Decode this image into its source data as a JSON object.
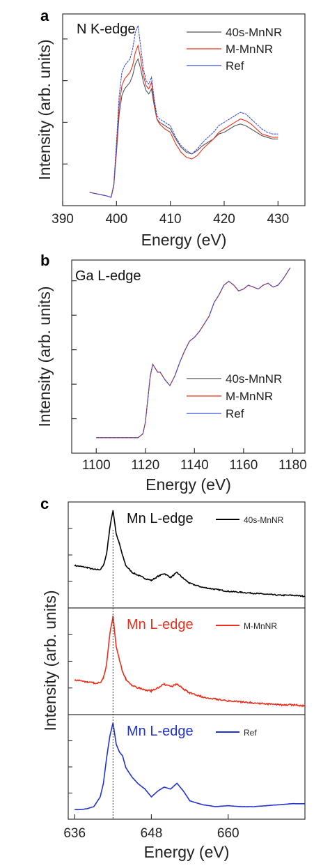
{
  "chart_data": [
    {
      "panel": "a",
      "type": "line",
      "annotation": "N K-edge",
      "xlabel": "Energy (eV)",
      "ylabel": "Intensity (arb. units)",
      "xlim": [
        390,
        435
      ],
      "ylim": [
        0,
        1.15
      ],
      "xticks": [
        390,
        400,
        410,
        420,
        430
      ],
      "legend_position": "top-right",
      "series": [
        {
          "name": "40s-MnNR",
          "color": "#555555",
          "x": [
            395,
            398,
            399,
            399.5,
            400,
            400.5,
            401,
            401.5,
            402,
            402.5,
            403,
            403.5,
            404,
            404.5,
            405,
            405.5,
            406,
            406.5,
            407,
            407.5,
            408,
            409,
            410,
            411,
            412,
            413,
            414,
            415,
            416,
            417,
            418,
            419,
            420,
            421,
            422,
            423,
            424,
            425,
            426,
            427,
            428,
            429,
            430
          ],
          "y": [
            0.08,
            0.06,
            0.05,
            0.12,
            0.32,
            0.55,
            0.66,
            0.7,
            0.72,
            0.74,
            0.78,
            0.85,
            0.88,
            0.82,
            0.74,
            0.69,
            0.67,
            0.7,
            0.6,
            0.52,
            0.5,
            0.48,
            0.46,
            0.4,
            0.35,
            0.32,
            0.31,
            0.33,
            0.36,
            0.38,
            0.4,
            0.43,
            0.44,
            0.46,
            0.48,
            0.49,
            0.48,
            0.46,
            0.44,
            0.42,
            0.41,
            0.4,
            0.4
          ]
        },
        {
          "name": "M-MnNR",
          "color": "#e8301c",
          "x": [
            395,
            398,
            399,
            399.5,
            400,
            400.5,
            401,
            401.5,
            402,
            402.5,
            403,
            403.5,
            404,
            404.5,
            405,
            405.5,
            406,
            406.5,
            407,
            407.5,
            408,
            409,
            410,
            411,
            412,
            413,
            414,
            415,
            416,
            417,
            418,
            419,
            420,
            421,
            422,
            423,
            424,
            425,
            426,
            427,
            428,
            429,
            430
          ],
          "y": [
            0.08,
            0.06,
            0.05,
            0.12,
            0.35,
            0.6,
            0.72,
            0.76,
            0.78,
            0.8,
            0.84,
            0.92,
            0.96,
            0.88,
            0.78,
            0.72,
            0.7,
            0.74,
            0.62,
            0.52,
            0.49,
            0.46,
            0.44,
            0.37,
            0.32,
            0.29,
            0.28,
            0.3,
            0.34,
            0.37,
            0.4,
            0.44,
            0.46,
            0.48,
            0.5,
            0.52,
            0.51,
            0.49,
            0.46,
            0.43,
            0.42,
            0.41,
            0.41
          ]
        },
        {
          "name": "Ref",
          "color": "#3a4fd8",
          "x": [
            395,
            398,
            399,
            399.5,
            400,
            400.5,
            401,
            401.5,
            402,
            402.5,
            403,
            403.5,
            404,
            404.5,
            405,
            405.5,
            406,
            406.5,
            407,
            407.5,
            408,
            409,
            410,
            411,
            412,
            413,
            414,
            415,
            416,
            417,
            418,
            419,
            420,
            421,
            422,
            423,
            424,
            425,
            426,
            427,
            428,
            429,
            430
          ],
          "y": [
            0.08,
            0.06,
            0.05,
            0.13,
            0.38,
            0.66,
            0.8,
            0.84,
            0.86,
            0.88,
            0.94,
            1.04,
            1.08,
            0.95,
            0.82,
            0.75,
            0.73,
            0.77,
            0.64,
            0.54,
            0.52,
            0.5,
            0.48,
            0.41,
            0.36,
            0.33,
            0.31,
            0.34,
            0.38,
            0.41,
            0.44,
            0.48,
            0.5,
            0.52,
            0.54,
            0.56,
            0.55,
            0.52,
            0.49,
            0.46,
            0.44,
            0.43,
            0.43
          ]
        }
      ]
    },
    {
      "panel": "b",
      "type": "line",
      "annotation": "Ga L-edge",
      "xlabel": "Energy (eV)",
      "ylabel": "Intensity (arb. units)",
      "xlim": [
        1090,
        1185
      ],
      "ylim": [
        0,
        1.0
      ],
      "xticks": [
        1100,
        1120,
        1140,
        1160,
        1180
      ],
      "legend_position": "bottom-right",
      "series": [
        {
          "name": "40s-MnNR",
          "color": "#555555",
          "x": [
            1100,
            1110,
            1117,
            1119,
            1120,
            1121,
            1122,
            1123,
            1124,
            1125,
            1126,
            1128,
            1130,
            1132,
            1134,
            1136,
            1138,
            1140,
            1142,
            1144,
            1146,
            1148,
            1150,
            1152,
            1154,
            1156,
            1158,
            1160,
            1162,
            1164,
            1166,
            1168,
            1170,
            1172,
            1174,
            1176,
            1178,
            1179
          ],
          "y": [
            0.08,
            0.08,
            0.08,
            0.1,
            0.16,
            0.28,
            0.4,
            0.46,
            0.44,
            0.42,
            0.42,
            0.38,
            0.35,
            0.4,
            0.47,
            0.53,
            0.58,
            0.6,
            0.63,
            0.67,
            0.71,
            0.78,
            0.82,
            0.87,
            0.89,
            0.87,
            0.84,
            0.85,
            0.87,
            0.86,
            0.85,
            0.87,
            0.88,
            0.86,
            0.87,
            0.9,
            0.94,
            0.96
          ]
        },
        {
          "name": "M-MnNR",
          "color": "#e8301c",
          "x": [
            1100,
            1110,
            1117,
            1119,
            1120,
            1121,
            1122,
            1123,
            1124,
            1125,
            1126,
            1128,
            1130,
            1132,
            1134,
            1136,
            1138,
            1140,
            1142,
            1144,
            1146,
            1148,
            1150,
            1152,
            1154,
            1156,
            1158,
            1160,
            1162,
            1164,
            1166,
            1168,
            1170,
            1172,
            1174,
            1176,
            1178,
            1179
          ],
          "y": [
            0.08,
            0.08,
            0.08,
            0.1,
            0.16,
            0.28,
            0.4,
            0.46,
            0.44,
            0.42,
            0.42,
            0.38,
            0.35,
            0.4,
            0.47,
            0.53,
            0.58,
            0.6,
            0.63,
            0.67,
            0.71,
            0.78,
            0.82,
            0.87,
            0.89,
            0.87,
            0.84,
            0.85,
            0.87,
            0.86,
            0.85,
            0.87,
            0.88,
            0.86,
            0.87,
            0.9,
            0.94,
            0.96
          ]
        },
        {
          "name": "Ref",
          "color": "#3a4fd8",
          "x": [
            1100,
            1110,
            1117,
            1119,
            1120,
            1121,
            1122,
            1123,
            1124,
            1125,
            1126,
            1128,
            1130,
            1132,
            1134,
            1136,
            1138,
            1140,
            1142,
            1144,
            1146,
            1148,
            1150,
            1152,
            1154,
            1156,
            1158,
            1160,
            1162,
            1164,
            1166,
            1168,
            1170,
            1172,
            1174,
            1176,
            1178,
            1179
          ],
          "y": [
            0.08,
            0.08,
            0.08,
            0.1,
            0.16,
            0.28,
            0.4,
            0.46,
            0.44,
            0.42,
            0.42,
            0.38,
            0.35,
            0.4,
            0.47,
            0.53,
            0.58,
            0.6,
            0.63,
            0.67,
            0.71,
            0.78,
            0.82,
            0.87,
            0.89,
            0.87,
            0.84,
            0.85,
            0.87,
            0.86,
            0.85,
            0.87,
            0.88,
            0.86,
            0.87,
            0.9,
            0.94,
            0.96
          ]
        }
      ]
    },
    {
      "panel": "c",
      "type": "line",
      "xlabel": "Energy (eV)",
      "ylabel": "Intensity (arb. units)",
      "xlim": [
        635,
        672
      ],
      "ylim": [
        0,
        1.0
      ],
      "xticks": [
        636,
        648,
        660
      ],
      "peak_marker_x": 642,
      "legend_position": "top-right",
      "subplots": [
        {
          "annotation": "Mn L-edge",
          "annotation_color": "#111111",
          "name": "40s-MnNR",
          "color": "#000000",
          "noise": 0.006,
          "x": [
            636,
            637,
            638,
            639,
            640,
            640.5,
            641,
            641.5,
            642,
            642.5,
            643,
            643.5,
            644,
            645,
            646,
            647,
            648,
            649,
            650,
            651,
            652,
            653,
            654,
            656,
            658,
            660,
            662,
            664,
            666,
            668,
            670,
            672
          ],
          "y": [
            0.4,
            0.39,
            0.38,
            0.36,
            0.36,
            0.4,
            0.52,
            0.78,
            0.96,
            0.72,
            0.62,
            0.5,
            0.4,
            0.33,
            0.3,
            0.27,
            0.25,
            0.29,
            0.32,
            0.28,
            0.33,
            0.27,
            0.22,
            0.18,
            0.16,
            0.14,
            0.13,
            0.12,
            0.11,
            0.1,
            0.1,
            0.09
          ]
        },
        {
          "annotation": "Mn L-edge",
          "annotation_color": "#e8301c",
          "name": "M-MnNR",
          "color": "#e8301c",
          "noise": 0.008,
          "x": [
            636,
            637,
            638,
            639,
            640,
            640.5,
            641,
            641.5,
            642,
            642.5,
            643,
            643.5,
            644,
            645,
            646,
            647,
            648,
            649,
            650,
            651,
            652,
            653,
            654,
            656,
            658,
            660,
            662,
            664,
            666,
            668,
            670,
            672
          ],
          "y": [
            0.32,
            0.31,
            0.3,
            0.29,
            0.29,
            0.34,
            0.48,
            0.78,
            0.96,
            0.66,
            0.52,
            0.4,
            0.33,
            0.26,
            0.24,
            0.22,
            0.21,
            0.24,
            0.28,
            0.25,
            0.28,
            0.23,
            0.19,
            0.15,
            0.13,
            0.11,
            0.1,
            0.09,
            0.08,
            0.07,
            0.07,
            0.06
          ]
        },
        {
          "annotation": "Mn L-edge",
          "annotation_color": "#2233cc",
          "name": "Ref",
          "color": "#2233cc",
          "noise": 0.001,
          "x": [
            636,
            637,
            638,
            639,
            640,
            640.5,
            641,
            641.5,
            642,
            642.5,
            643,
            643.5,
            644,
            645,
            646,
            647,
            648,
            649,
            650,
            651,
            652,
            653,
            654,
            656,
            658,
            660,
            662,
            664,
            666,
            668,
            670,
            672
          ],
          "y": [
            0.07,
            0.07,
            0.08,
            0.1,
            0.2,
            0.34,
            0.6,
            0.82,
            0.96,
            0.74,
            0.66,
            0.62,
            0.5,
            0.4,
            0.33,
            0.28,
            0.2,
            0.26,
            0.3,
            0.28,
            0.34,
            0.26,
            0.16,
            0.12,
            0.1,
            0.11,
            0.1,
            0.1,
            0.11,
            0.12,
            0.13,
            0.13
          ]
        }
      ]
    }
  ]
}
